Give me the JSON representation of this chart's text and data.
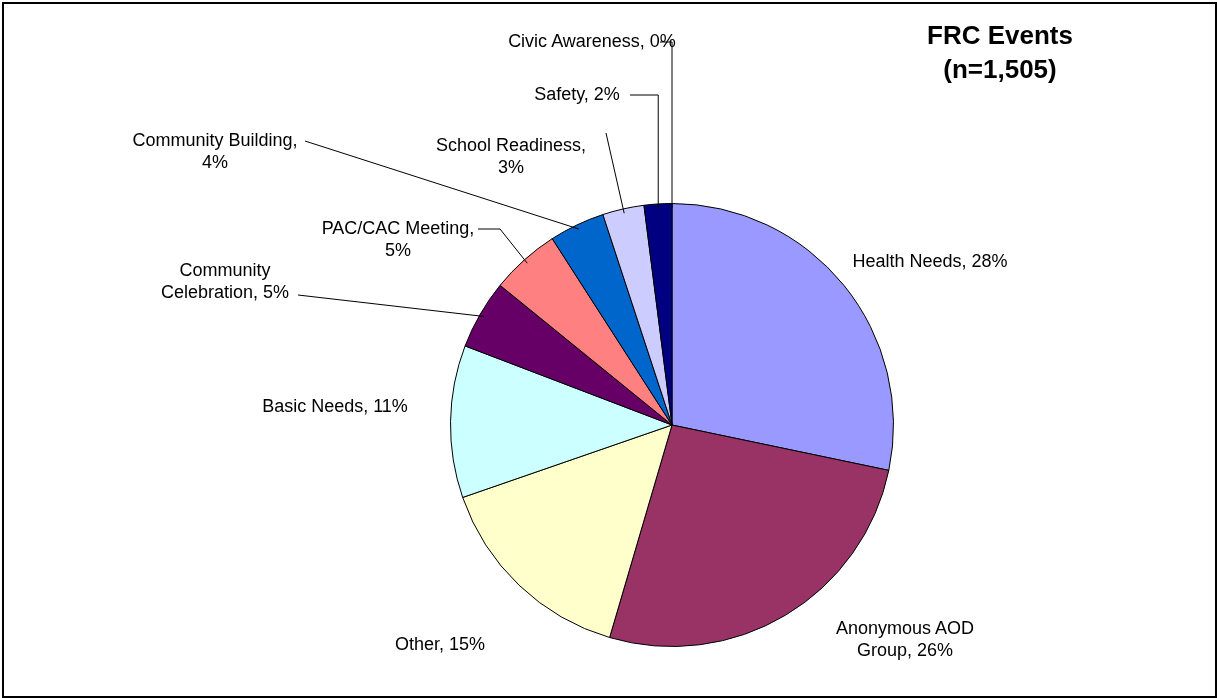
{
  "chart_data": {
    "type": "pie",
    "title": "FRC Events (n=1,505)",
    "categories": [
      "Health Needs, 28%",
      "Anonymous AOD Group, 26%",
      "Other, 15%",
      "Basic Needs, 11%",
      "Community Celebration, 5%",
      "PAC/CAC Meeting, 5%",
      "Community Building, 4%",
      "School Readiness, 3%",
      "Safety, 2%",
      "Civic Awareness, 0%"
    ],
    "values": [
      28,
      26,
      15,
      11,
      5,
      5,
      4,
      3,
      2,
      0
    ],
    "colors": [
      "#9999ff",
      "#993366",
      "#ffffcc",
      "#ccffff",
      "#660066",
      "#ff8080",
      "#0066cc",
      "#ccccff",
      "#000080",
      "#ff00ff"
    ]
  }
}
